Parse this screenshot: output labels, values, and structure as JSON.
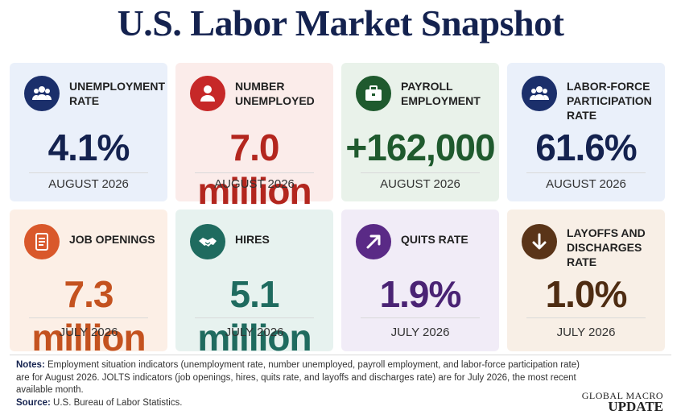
{
  "title": "U.S. Labor Market Snapshot",
  "cards": [
    {
      "label": "UNEMPLOYMENT RATE",
      "value": "4.1%",
      "date": "AUGUST 2026",
      "icon": "people-icon",
      "bg": "#eaf0fa",
      "icon_color": "#1b2f6b",
      "value_color": "#14224f"
    },
    {
      "label": "NUMBER UNEMPLOYED",
      "value": "7.0 million",
      "date": "AUGUST 2026",
      "icon": "person-icon",
      "bg": "#fbecea",
      "icon_color": "#c62828",
      "value_color": "#b3261e"
    },
    {
      "label": "PAYROLL EMPLOYMENT",
      "value": "+162,000",
      "date": "AUGUST 2026",
      "icon": "briefcase-icon",
      "bg": "#e9f2ea",
      "icon_color": "#1f5a2e",
      "value_color": "#1f5a2e"
    },
    {
      "label": "LABOR-FORCE PARTICIPATION RATE",
      "value": "61.6%",
      "date": "AUGUST 2026",
      "icon": "people-icon",
      "bg": "#eaf0fa",
      "icon_color": "#1b2f6b",
      "value_color": "#14224f"
    },
    {
      "label": "JOB OPENINGS",
      "value": "7.3 million",
      "date": "JULY 2026",
      "icon": "document-icon",
      "bg": "#fcefe6",
      "icon_color": "#d9582b",
      "value_color": "#c4521f"
    },
    {
      "label": "HIRES",
      "value": "5.1 million",
      "date": "JULY 2026",
      "icon": "handshake-icon",
      "bg": "#e7f2ef",
      "icon_color": "#1f6b5f",
      "value_color": "#1f6b5f"
    },
    {
      "label": "QUITS RATE",
      "value": "1.9%",
      "date": "JULY 2026",
      "icon": "arrow-up-right-icon",
      "bg": "#f1ecf7",
      "icon_color": "#5a2a86",
      "value_color": "#4a2374"
    },
    {
      "label": "LAYOFFS AND DISCHARGES RATE",
      "value": "1.0%",
      "date": "JULY 2026",
      "icon": "arrow-down-icon",
      "bg": "#f8efe6",
      "icon_color": "#5a3418",
      "value_color": "#4e2c12"
    }
  ],
  "notes": {
    "notes_label": "Notes:",
    "notes_text": "Employment situation indicators (unemployment rate, number unemployed, payroll employment, and labor-force participation rate) are for August 2026. JOLTS indicators (job openings, hires, quits rate, and layoffs and discharges rate) are for July 2026, the most recent available month.",
    "source_label": "Source:",
    "source_text": "U.S. Bureau of Labor Statistics."
  },
  "brand": {
    "line1": "GLOBAL MACRO",
    "line2": "UPDATE"
  }
}
